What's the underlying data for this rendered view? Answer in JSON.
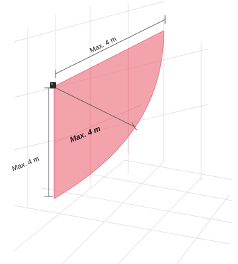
{
  "diagram": {
    "labels": {
      "top_dimension": "Max. 4 m",
      "diagonal_dimension": "Max. 4 m",
      "vertical_dimension": "Max. 4 m"
    },
    "colors": {
      "coverage_fill": "#ee7f8c",
      "coverage_edge": "#e06b7a",
      "grid_line": "#d8d8d8",
      "dimension_line": "#555555",
      "sensor": "#2b2b2b"
    },
    "icons": {
      "sensor": "sensor-icon"
    }
  }
}
